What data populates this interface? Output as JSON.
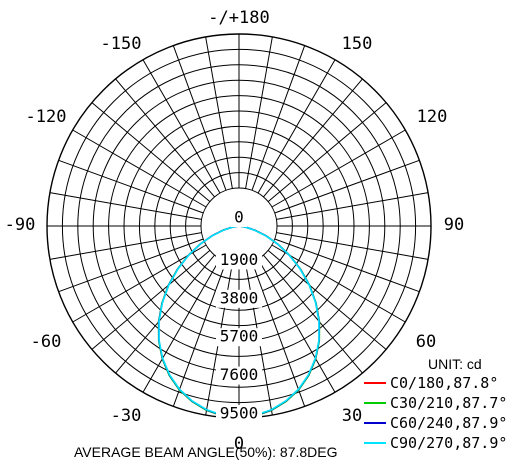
{
  "chart_data": {
    "type": "polar",
    "angle_labels": [
      {
        "deg": 180,
        "text": "-/+180"
      },
      {
        "deg": 150,
        "text": "150"
      },
      {
        "deg": -150,
        "text": "-150"
      },
      {
        "deg": 120,
        "text": "120"
      },
      {
        "deg": -120,
        "text": "-120"
      },
      {
        "deg": 90,
        "text": "90"
      },
      {
        "deg": -90,
        "text": "-90"
      },
      {
        "deg": 60,
        "text": "60"
      },
      {
        "deg": -60,
        "text": "-60"
      },
      {
        "deg": 30,
        "text": "30"
      },
      {
        "deg": -30,
        "text": "-30"
      },
      {
        "deg": 0,
        "text": "0"
      }
    ],
    "ring_values": [
      0,
      1900,
      3800,
      5700,
      7600,
      9500
    ],
    "r_max": 9500,
    "unit_label": "UNIT: cd",
    "series": [
      {
        "name": "C0/180,87.8°",
        "color": "#ff0000",
        "angles": [
          0,
          5,
          10,
          15,
          20,
          25,
          30,
          35,
          40,
          45,
          50,
          55,
          60,
          65,
          70,
          75,
          80,
          85,
          90
        ],
        "values": [
          9480,
          9420,
          9250,
          8980,
          8620,
          8150,
          7580,
          6920,
          6180,
          5380,
          4550,
          3700,
          2880,
          2120,
          1420,
          820,
          360,
          90,
          0
        ]
      },
      {
        "name": "C30/210,87.7°",
        "color": "#00cc00",
        "angles": [
          0,
          5,
          10,
          15,
          20,
          25,
          30,
          35,
          40,
          45,
          50,
          55,
          60,
          65,
          70,
          75,
          80,
          85,
          90
        ],
        "values": [
          9500,
          9430,
          9260,
          8990,
          8630,
          8160,
          7590,
          6930,
          6190,
          5390,
          4560,
          3710,
          2880,
          2120,
          1420,
          820,
          360,
          90,
          0
        ]
      },
      {
        "name": "C60/240,87.9°",
        "color": "#0000cc",
        "angles": [
          0,
          5,
          10,
          15,
          20,
          25,
          30,
          35,
          40,
          45,
          50,
          55,
          60,
          65,
          70,
          75,
          80,
          85,
          90
        ],
        "values": [
          9470,
          9410,
          9240,
          8970,
          8610,
          8140,
          7570,
          6910,
          6170,
          5370,
          4540,
          3690,
          2870,
          2110,
          1410,
          810,
          350,
          90,
          0
        ]
      },
      {
        "name": "C90/270,87.9°",
        "color": "#00e5ff",
        "angles": [
          0,
          5,
          10,
          15,
          20,
          25,
          30,
          35,
          40,
          45,
          50,
          55,
          60,
          65,
          70,
          75,
          80,
          85,
          90
        ],
        "values": [
          9450,
          9390,
          9230,
          8960,
          8600,
          8130,
          7560,
          6900,
          6160,
          5360,
          4530,
          3680,
          2860,
          2100,
          1400,
          800,
          350,
          90,
          0
        ]
      }
    ],
    "footer": "AVERAGE BEAM ANGLE(50%): 87.8DEG",
    "grid": true,
    "legend_position": "bottom-right"
  }
}
